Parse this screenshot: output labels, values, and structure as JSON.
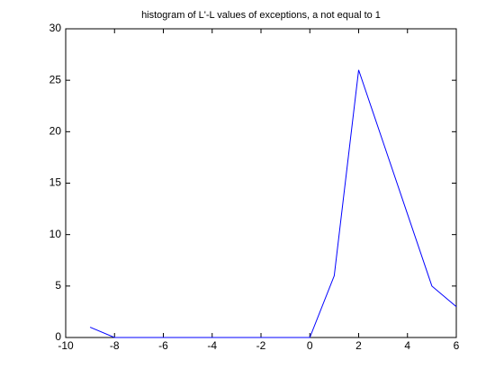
{
  "chart_data": {
    "type": "line",
    "title": "histogram of L'-L values of exceptions, a not equal to 1",
    "x": [
      -9,
      -8,
      -7,
      -6,
      -5,
      -4,
      -3,
      -2,
      -1,
      0,
      1,
      2,
      3,
      4,
      5,
      6
    ],
    "series": [
      {
        "color": "#0000ff",
        "values": [
          1,
          0,
          0,
          0,
          0,
          0,
          0,
          0,
          0,
          0,
          6,
          26,
          19,
          12,
          5,
          3
        ]
      }
    ],
    "xlim": [
      -10,
      6
    ],
    "xticks": [
      -10,
      -8,
      -6,
      -4,
      -2,
      0,
      2,
      4,
      6
    ],
    "ylim": [
      0,
      30
    ],
    "yticks": [
      0,
      5,
      10,
      15,
      20,
      25,
      30
    ]
  }
}
